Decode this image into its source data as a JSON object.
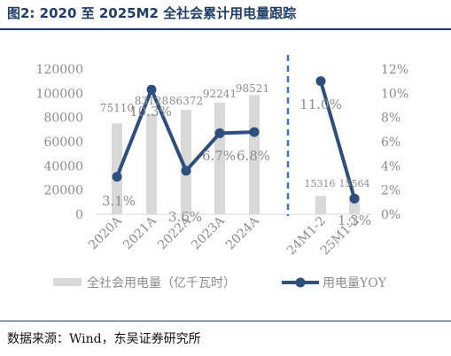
{
  "figure": {
    "title": "图2:  2020 至 2025M2 全社会累计用电量跟踪",
    "source": "数据来源：Wind，东吴证券研究所"
  },
  "colors": {
    "bar": "#d9d9d9",
    "line": "#2e4e7e",
    "divider": "#4472c4",
    "axis_text": "#8c8c8c",
    "title": "#1f3d66"
  },
  "chart_data": {
    "type": "bar",
    "categories": [
      "2020A",
      "2021A",
      "2022A",
      "2023A",
      "2024A",
      "24M1-2",
      "25M1-2"
    ],
    "series": [
      {
        "name": "全社会用电量（亿千瓦时）",
        "type": "bar",
        "axis": "left",
        "values": [
          75110,
          83128,
          86372,
          92241,
          98521,
          15316,
          15564
        ],
        "labels": [
          "75110",
          "83128",
          "86372",
          "92241",
          "98521",
          "15316",
          "15564"
        ]
      },
      {
        "name": "用电量YOY",
        "type": "line",
        "axis": "right",
        "values": [
          3.1,
          10.3,
          3.6,
          6.7,
          6.8,
          11.0,
          1.3
        ],
        "labels": [
          "3.1%",
          "10.3%",
          "3.6%",
          "6.7%",
          "6.8%",
          "11.0%",
          "1.3%"
        ]
      }
    ],
    "y_left": {
      "min": 0,
      "max": 120000,
      "ticks": [
        "0",
        "20000",
        "40000",
        "60000",
        "80000",
        "100000",
        "120000"
      ]
    },
    "y_right": {
      "min": 0,
      "max": 12,
      "ticks": [
        "0%",
        "2%",
        "4%",
        "6%",
        "8%",
        "10%",
        "12%"
      ]
    },
    "grid": false,
    "divider_after_category": "2024A",
    "legend_position": "bottom"
  }
}
